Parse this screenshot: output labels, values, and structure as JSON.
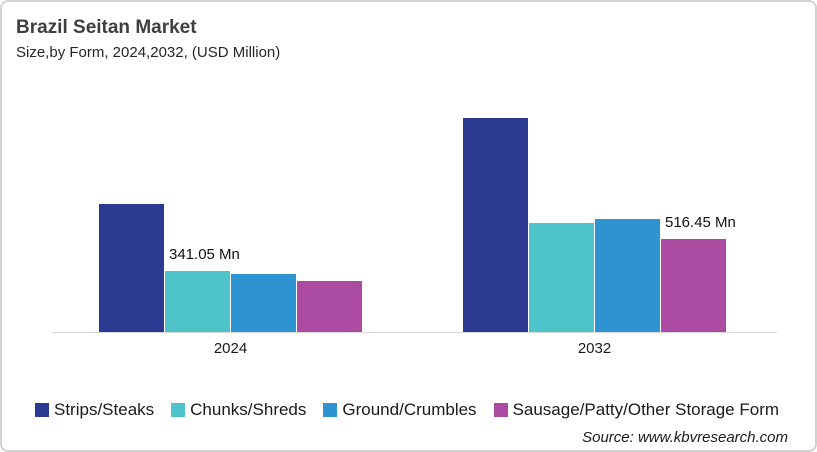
{
  "header": {
    "title": "Brazil Seitan Market",
    "subtitle": "Size,by Form, 2024,2032, (USD Million)"
  },
  "chart_data": {
    "type": "bar",
    "categories": [
      "2024",
      "2032"
    ],
    "series": [
      {
        "name": "Strips/Steaks",
        "color": "#2B3990",
        "values": [
          710,
          1190
        ]
      },
      {
        "name": "Chunks/Shreds",
        "color": "#4EC3CA",
        "values": [
          341.05,
          608
        ]
      },
      {
        "name": "Ground/Crumbles",
        "color": "#2E93D1",
        "values": [
          324,
          627
        ]
      },
      {
        "name": "Sausage/Patty/Other Storage Form",
        "color": "#AB4BA1",
        "values": [
          286,
          516.45
        ]
      }
    ],
    "annotations": [
      {
        "text": "341.05 Mn",
        "category_index": 0,
        "series_index": 1
      },
      {
        "text": "516.45 Mn",
        "category_index": 1,
        "series_index": 3
      }
    ],
    "title": "Brazil Seitan Market",
    "xlabel": "",
    "ylabel": "USD Million",
    "ylim": [
      0,
      1280
    ],
    "grid": false,
    "legend_position": "bottom",
    "axis_line_color": "#d9d9d9"
  },
  "footer": {
    "source": "Source: www.kbvresearch.com"
  }
}
